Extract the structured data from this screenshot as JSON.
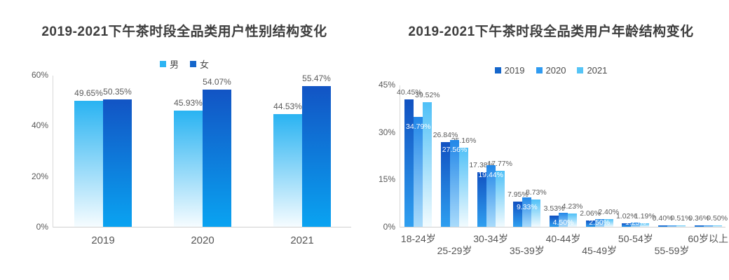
{
  "chart_data": [
    {
      "type": "bar",
      "title": "2019-2021下午茶时段全品类用户性别结构变化",
      "categories": [
        "2019",
        "2020",
        "2021"
      ],
      "series": [
        {
          "name": "男",
          "values": [
            49.65,
            45.93,
            44.53
          ],
          "color_top": "#29b3f2",
          "color_bottom": "#f6fcff",
          "legend_color": "#2db4f3",
          "label_style": "above"
        },
        {
          "name": "女",
          "values": [
            50.35,
            54.07,
            55.47
          ],
          "color_top": "#1254c4",
          "color_bottom": "#0aa3f1",
          "legend_color": "#1566cb",
          "label_style": "above"
        }
      ],
      "value_suffix": "%",
      "yticks": [
        "0%",
        "20%",
        "40%",
        "60%"
      ],
      "ytick_values": [
        0,
        20,
        40,
        60
      ],
      "ylim": [
        0,
        60
      ],
      "xlabel": "",
      "ylabel": "",
      "legend_position": "top",
      "grid": false
    },
    {
      "type": "bar",
      "title": "2019-2021下午茶时段全品类用户年龄结构变化",
      "categories": [
        "18-24岁",
        "25-29岁",
        "30-34岁",
        "35-39岁",
        "40-44岁",
        "45-49岁",
        "50-54岁",
        "55-59岁",
        "60岁以上"
      ],
      "series": [
        {
          "name": "2019",
          "values": [
            40.45,
            26.84,
            17.38,
            7.95,
            3.53,
            2.06,
            1.02,
            0.4,
            0.36
          ],
          "color_top": "#1151c1",
          "color_bottom": "#2f9ff0",
          "legend_color": "#1566cb",
          "label_style": "above"
        },
        {
          "name": "2020",
          "values": [
            34.79,
            27.56,
            19.44,
            9.33,
            4.5,
            2.5,
            1.25,
            0.55,
            0.55
          ],
          "color_top": "#2287e8",
          "color_bottom": "#a9dbfb",
          "legend_color": "#2f9bf1",
          "label_style": "inside"
        },
        {
          "name": "2021",
          "values": [
            39.52,
            25.16,
            17.77,
            8.73,
            4.23,
            2.4,
            1.19,
            0.51,
            0.5
          ],
          "color_top": "#4fc0f7",
          "color_bottom": "#f2fbfe",
          "legend_color": "#55c4f6",
          "label_style": "above"
        }
      ],
      "value_suffix": "%",
      "yticks": [
        "0%",
        "15%",
        "30%",
        "45%"
      ],
      "ytick_values": [
        0,
        15,
        30,
        45
      ],
      "ylim": [
        0,
        45
      ],
      "xlabel": "",
      "ylabel": "",
      "legend_position": "top",
      "grid": false,
      "xlabel_rows": 2
    }
  ]
}
